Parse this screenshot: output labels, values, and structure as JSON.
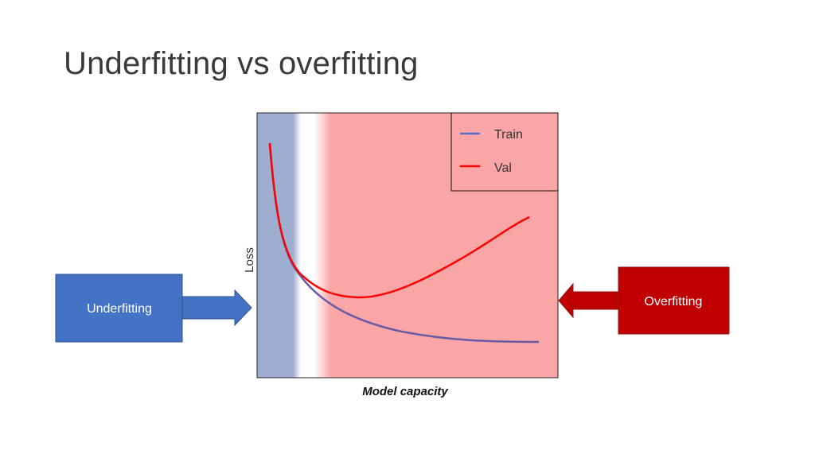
{
  "slide": {
    "title": "Underfitting vs overfitting"
  },
  "chart_data": {
    "type": "line",
    "xlabel": "Model capacity",
    "ylabel": "Loss",
    "legend_position": "top-right",
    "series": [
      {
        "name": "Train",
        "color": "#5b6fc9"
      },
      {
        "name": "Val",
        "color": "#ff0000"
      }
    ],
    "regions": [
      {
        "name": "underfitting-region",
        "color": "#9eaed0"
      },
      {
        "name": "overfitting-region",
        "color": "#fba6a6"
      }
    ]
  },
  "callouts": {
    "underfitting": {
      "label": "Underfitting",
      "color": "#4472c4"
    },
    "overfitting": {
      "label": "Overfitting",
      "color": "#c00000"
    }
  }
}
